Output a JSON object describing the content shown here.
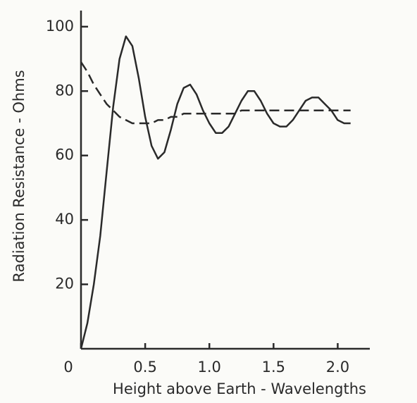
{
  "chart_data": {
    "type": "line",
    "xlabel": "Height above Earth - Wavelengths",
    "ylabel": "Radiation Resistance - Ohms",
    "x": [
      0,
      0.05,
      0.1,
      0.15,
      0.2,
      0.25,
      0.3,
      0.35,
      0.4,
      0.45,
      0.5,
      0.55,
      0.6,
      0.65,
      0.7,
      0.75,
      0.8,
      0.85,
      0.9,
      0.95,
      1.0,
      1.05,
      1.1,
      1.15,
      1.2,
      1.25,
      1.3,
      1.35,
      1.4,
      1.45,
      1.5,
      1.55,
      1.6,
      1.65,
      1.7,
      1.75,
      1.8,
      1.85,
      1.9,
      1.95,
      2.0,
      2.05,
      2.1
    ],
    "series": [
      {
        "color": "#2a2a2a",
        "dash": "solid",
        "values": [
          0,
          8,
          20,
          35,
          55,
          75,
          90,
          97,
          94,
          84,
          72,
          63,
          59,
          61,
          68,
          76,
          81,
          82,
          79,
          74,
          70,
          67,
          67,
          69,
          73,
          77,
          80,
          80,
          77,
          73,
          70,
          69,
          69,
          71,
          74,
          77,
          78,
          78,
          76,
          74,
          71,
          70,
          70
        ]
      },
      {
        "color": "#2a2a2a",
        "dash": "dashed",
        "values": [
          89,
          86,
          82,
          79,
          76,
          74,
          72,
          71,
          70,
          70,
          70,
          70,
          71,
          71,
          72,
          72,
          73,
          73,
          73,
          73,
          73,
          73,
          73,
          73,
          73,
          74,
          74,
          74,
          74,
          74,
          74,
          74,
          74,
          74,
          74,
          74,
          74,
          74,
          74,
          74,
          74,
          74,
          74
        ]
      }
    ],
    "xlim": [
      0,
      2.25
    ],
    "ylim": [
      0,
      105
    ],
    "xticks": [
      0,
      0.5,
      {
        "value": 1,
        "label": "1.0"
      },
      1.5,
      {
        "value": 2,
        "label": "2.0"
      }
    ],
    "yticks": [
      20,
      40,
      60,
      80,
      100
    ]
  }
}
